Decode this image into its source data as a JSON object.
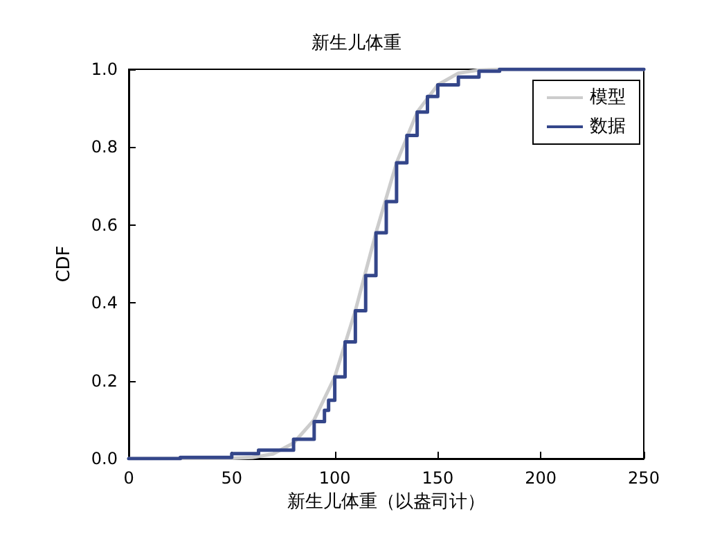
{
  "chart_data": {
    "type": "line",
    "title": "新生儿体重",
    "xlabel": "新生儿体重（以盎司计）",
    "ylabel": "CDF",
    "xlim": [
      0,
      250
    ],
    "xticks": [
      0,
      50,
      100,
      150,
      200,
      250
    ],
    "ylim": [
      0,
      1
    ],
    "yticks": [
      {
        "value": 0,
        "label": "0.0"
      },
      {
        "value": 0.2,
        "label": "0.2"
      },
      {
        "value": 0.4,
        "label": "0.4"
      },
      {
        "value": 0.6,
        "label": "0.6"
      },
      {
        "value": 0.8,
        "label": "0.8"
      },
      {
        "value": 1,
        "label": "1.0"
      }
    ],
    "grid": false,
    "legend": "top right",
    "marker": "none",
    "series": [
      {
        "name": "模型",
        "color": "#cccccc",
        "x": [
          0,
          50,
          60,
          70,
          80,
          90,
          100,
          110,
          115,
          120,
          130,
          140,
          150,
          160,
          170,
          180,
          250
        ],
        "values": [
          0,
          0.001,
          0.003,
          0.012,
          0.04,
          0.1,
          0.21,
          0.38,
          0.48,
          0.58,
          0.76,
          0.89,
          0.96,
          0.99,
          0.998,
          1,
          1
        ]
      },
      {
        "name": "数据",
        "type": "step",
        "color": "#34468a",
        "x": [
          0,
          25,
          50,
          63,
          80,
          90,
          95,
          97,
          100,
          105,
          110,
          115,
          120,
          125,
          130,
          135,
          140,
          145,
          150,
          160,
          170,
          180,
          250
        ],
        "values": [
          0,
          0.003,
          0.013,
          0.022,
          0.05,
          0.095,
          0.124,
          0.15,
          0.21,
          0.3,
          0.38,
          0.47,
          0.58,
          0.66,
          0.76,
          0.83,
          0.89,
          0.93,
          0.96,
          0.98,
          0.995,
          1,
          1
        ]
      }
    ]
  }
}
